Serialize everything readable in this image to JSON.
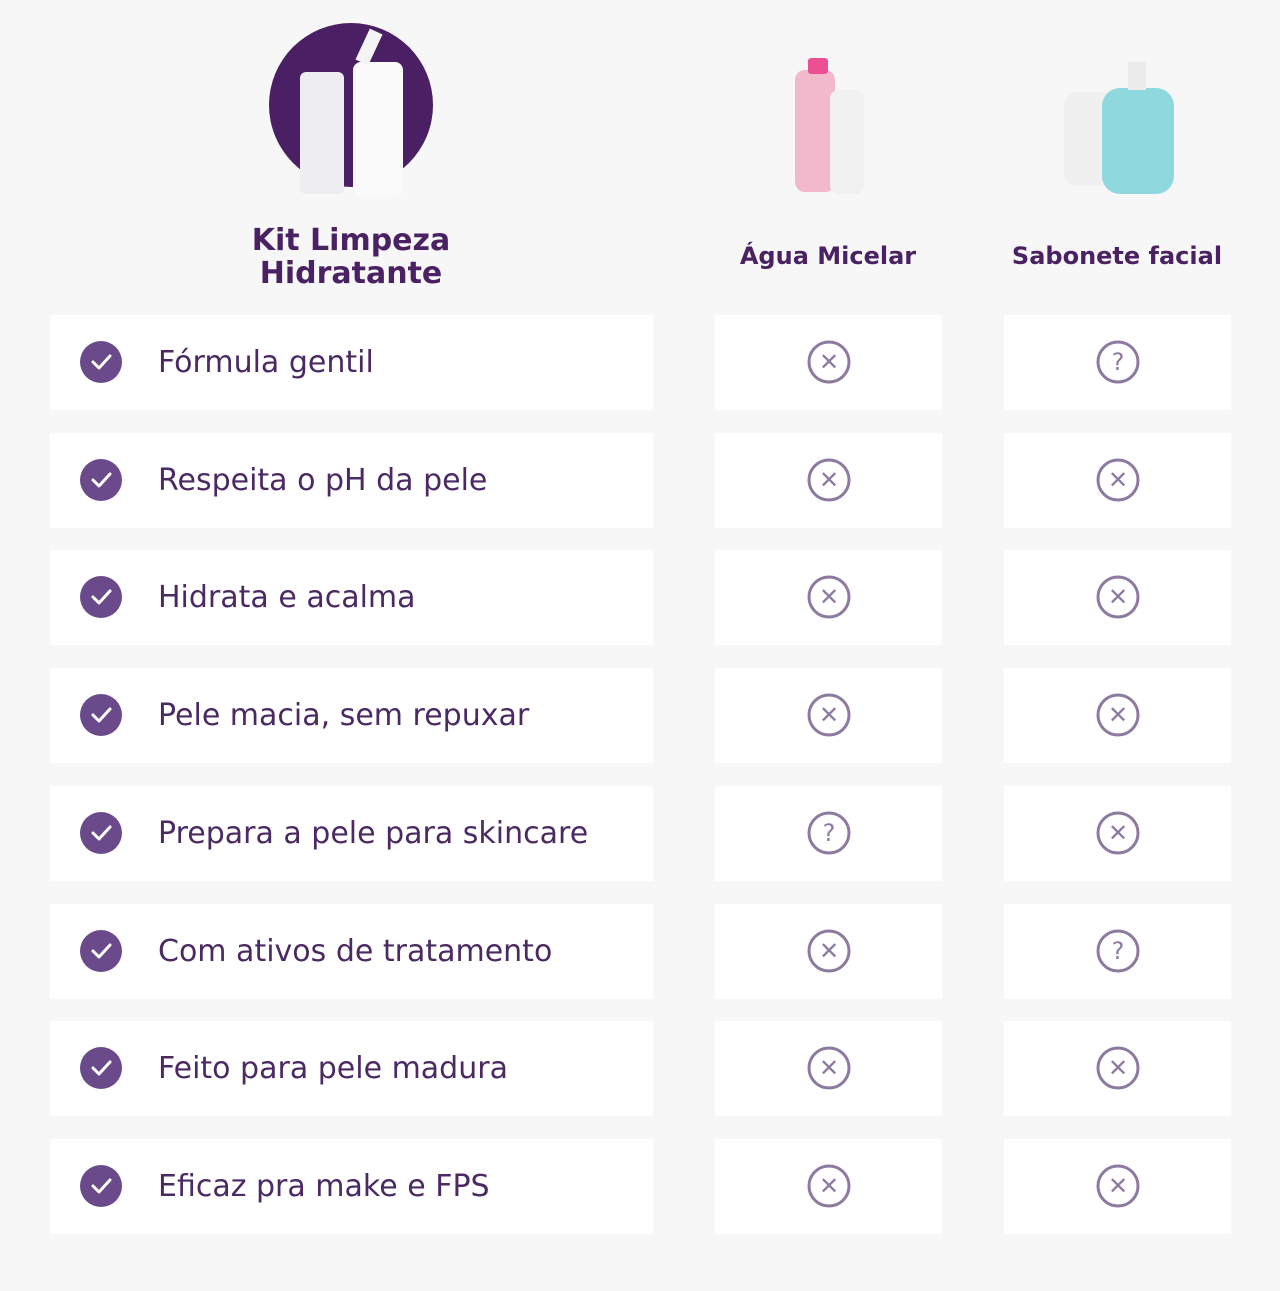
{
  "header": {
    "product": {
      "title_lines": [
        "Kit Limpeza",
        "Hidratante"
      ]
    },
    "competitors": [
      "Água Micelar",
      "Sabonete facial"
    ]
  },
  "table": {
    "rows": [
      {
        "feature": "Fórmula gentil",
        "cells": [
          "✕",
          "?"
        ]
      },
      {
        "feature": "Respeita o pH da pele",
        "cells": [
          "✕",
          "✕"
        ]
      },
      {
        "feature": "Hidrata e acalma",
        "cells": [
          "✕",
          "✕"
        ]
      },
      {
        "feature": "Pele macia, sem repuxar",
        "cells": [
          "✕",
          "✕"
        ]
      },
      {
        "feature": "Prepara a pele para skincare",
        "cells": [
          "?",
          "✕"
        ]
      },
      {
        "feature": "Com ativos de tratamento",
        "cells": [
          "✕",
          "?"
        ]
      },
      {
        "feature": "Feito para pele madura",
        "cells": [
          "✕",
          "✕"
        ]
      },
      {
        "feature": "Eficaz pra make e FPS",
        "cells": [
          "✕",
          "✕"
        ]
      }
    ]
  }
}
